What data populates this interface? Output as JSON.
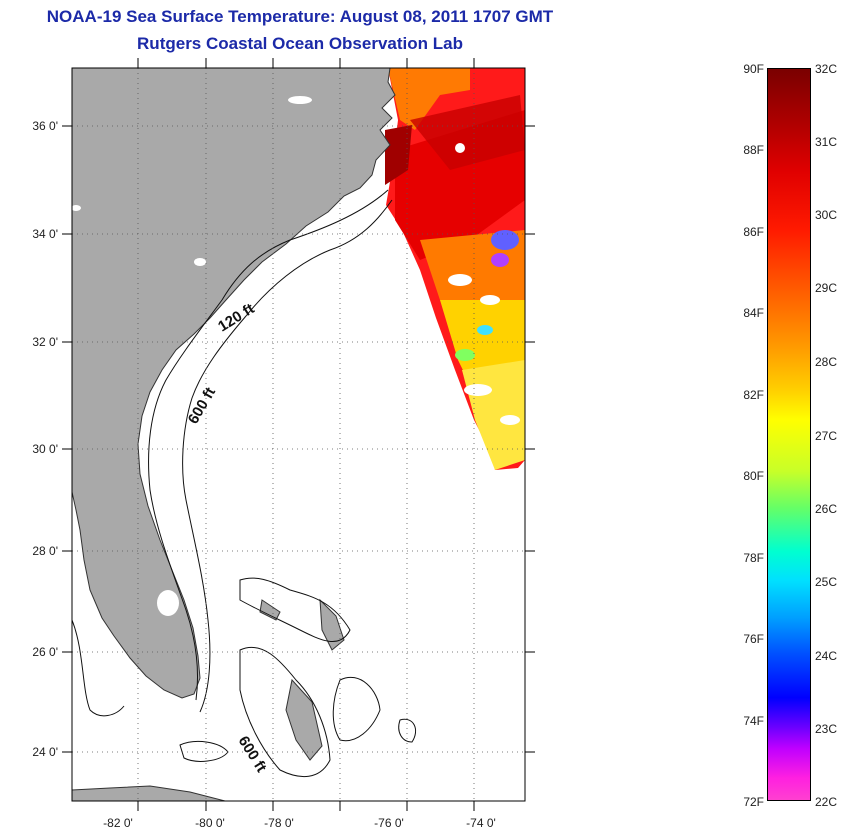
{
  "title": {
    "line1": "NOAA-19 Sea Surface Temperature:  August 08, 2011 1707 GMT",
    "line2": "Rutgers Coastal Ocean Observation Lab"
  },
  "map": {
    "lat_ticks": [
      "36 0'",
      "34 0'",
      "32 0'",
      "30 0'",
      "28 0'",
      "26 0'",
      "24 0'"
    ],
    "lon_ticks": [
      "-82 0'",
      "-80 0'",
      "-78 0'",
      "-76 0'",
      "-74 0'"
    ],
    "contour_labels": [
      "120 ft",
      "600 ft",
      "600 ft"
    ],
    "colors": {
      "land": "#a9a9a9",
      "frame": "#000000",
      "grid": "#555555"
    }
  },
  "colorbar": {
    "fahrenheit": [
      "90F",
      "88F",
      "86F",
      "84F",
      "82F",
      "80F",
      "78F",
      "76F",
      "74F",
      "72F"
    ],
    "celsius": [
      "32C",
      "31C",
      "30C",
      "29C",
      "28C",
      "27C",
      "26C",
      "25C",
      "24C",
      "23C",
      "22C"
    ]
  }
}
